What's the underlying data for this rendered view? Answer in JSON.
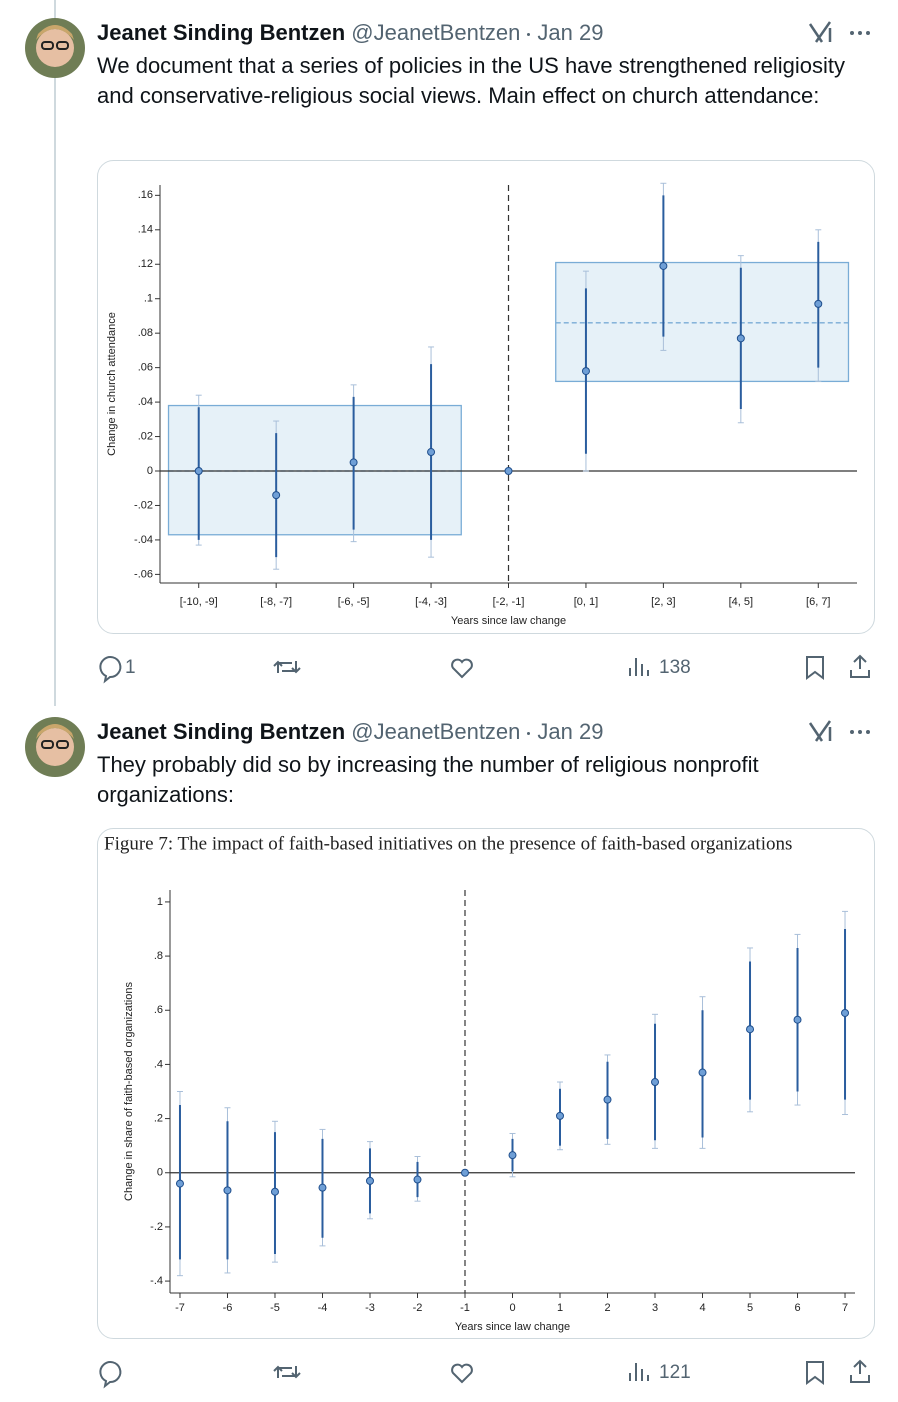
{
  "tweets": [
    {
      "author": "Jeanet Sinding Bentzen",
      "handle": "@JeanetBentzen",
      "date": "Jan 29",
      "text": "We document that a series of policies in the US have strengthened religiosity and conservative-religious social views. Main effect on church attendance:",
      "replies": 1,
      "views": 138,
      "chart_data": {
        "type": "errorbar",
        "y_label": "Change in church attendance",
        "x_label": "Years since law change",
        "categories": [
          "[-10, -9]",
          "[-8, -7]",
          "[-6, -5]",
          "[-4, -3]",
          "[-2, -1]",
          "[0, 1]",
          "[2, 3]",
          "[4, 5]",
          "[6, 7]"
        ],
        "values": [
          0,
          -0.014,
          0.005,
          0.011,
          0,
          0.058,
          0.119,
          0.077,
          0.097
        ],
        "lower": [
          -0.04,
          -0.05,
          -0.034,
          -0.04,
          null,
          0.01,
          0.078,
          0.036,
          0.06
        ],
        "upper": [
          0.037,
          0.022,
          0.043,
          0.062,
          null,
          0.106,
          0.16,
          0.118,
          0.133
        ],
        "outer_lower": [
          -0.043,
          -0.057,
          -0.041,
          -0.05,
          null,
          0,
          0.07,
          0.028,
          0.052
        ],
        "outer_upper": [
          0.044,
          0.029,
          0.05,
          0.072,
          null,
          0.116,
          0.167,
          0.125,
          0.14
        ],
        "boxes": [
          {
            "start": "[-10, -9]",
            "end": "[-4, -3]",
            "lower": -0.037,
            "upper": 0.038,
            "mean": 0
          },
          {
            "start": "[0, 1]",
            "end": "[6, 7]",
            "lower": 0.052,
            "upper": 0.121,
            "mean": 0.086
          }
        ],
        "reference_y": 0,
        "reference_x": "[-2, -1]",
        "ylim": [
          -0.065,
          0.166
        ],
        "yticks": [
          {
            "value": 0.16,
            "label": ".16"
          },
          {
            "value": 0.14,
            "label": ".14"
          },
          {
            "value": 0.12,
            "label": ".12"
          },
          {
            "value": 0.1,
            "label": ".1"
          },
          {
            "value": 0.08,
            "label": ".08"
          },
          {
            "value": 0.06,
            "label": ".06"
          },
          {
            "value": 0.04,
            "label": ".04"
          },
          {
            "value": 0.02,
            "label": ".02"
          },
          0,
          {
            "value": -0.02,
            "label": "-.02"
          },
          {
            "value": -0.04,
            "label": "-.04"
          },
          {
            "value": -0.06,
            "label": "-.06"
          }
        ],
        "color": "#2a5d9e"
      }
    },
    {
      "author": "Jeanet Sinding Bentzen",
      "handle": "@JeanetBentzen",
      "date": "Jan 29",
      "text": "They probably did so by increasing the number of religious nonprofit organizations:",
      "views": 121,
      "chart_data": {
        "type": "errorbar",
        "title": "Figure 7: The impact of faith-based initiatives on the presence of faith-based organizations",
        "y_label": "Change in share of faith-based organizations",
        "x_label": "Years since law change",
        "x": [
          -7,
          -6,
          -5,
          -4,
          -3,
          -2,
          -1,
          0,
          1,
          2,
          3,
          4,
          5,
          6,
          7
        ],
        "values": [
          -0.04,
          -0.065,
          -0.07,
          -0.055,
          -0.03,
          -0.025,
          0,
          0.065,
          0.21,
          0.27,
          0.335,
          0.37,
          0.53,
          0.565,
          0.59
        ],
        "lower": [
          -0.32,
          -0.32,
          -0.3,
          -0.24,
          -0.15,
          -0.09,
          null,
          0.005,
          0.1,
          0.125,
          0.12,
          0.13,
          0.27,
          0.3,
          0.27
        ],
        "upper": [
          0.25,
          0.19,
          0.15,
          0.125,
          0.09,
          0.04,
          null,
          0.125,
          0.31,
          0.41,
          0.55,
          0.6,
          0.78,
          0.83,
          0.9
        ],
        "outer_lower": [
          -0.38,
          -0.37,
          -0.33,
          -0.27,
          -0.17,
          -0.105,
          null,
          -0.015,
          0.085,
          0.105,
          0.09,
          0.09,
          0.225,
          0.25,
          0.215
        ],
        "outer_upper": [
          0.3,
          0.24,
          0.19,
          0.16,
          0.115,
          0.06,
          null,
          0.145,
          0.335,
          0.435,
          0.585,
          0.65,
          0.83,
          0.88,
          0.965
        ],
        "reference_y": 0,
        "reference_x": -1,
        "xlim": [
          -7.21,
          7.21
        ],
        "xticks": [
          -7,
          -6,
          -5,
          -4,
          -3,
          -2,
          -1,
          0,
          1,
          2,
          3,
          4,
          5,
          6,
          7
        ],
        "ylim": [
          -0.444,
          1.044
        ],
        "yticks": [
          1,
          {
            "value": 0.8,
            "label": ".8"
          },
          {
            "value": 0.6,
            "label": ".6"
          },
          {
            "value": 0.4,
            "label": ".4"
          },
          {
            "value": 0.2,
            "label": ".2"
          },
          0,
          {
            "value": -0.2,
            "label": "-.2"
          },
          {
            "value": -0.4,
            "label": "-.4"
          }
        ],
        "color": "#2a5d9e"
      }
    }
  ]
}
